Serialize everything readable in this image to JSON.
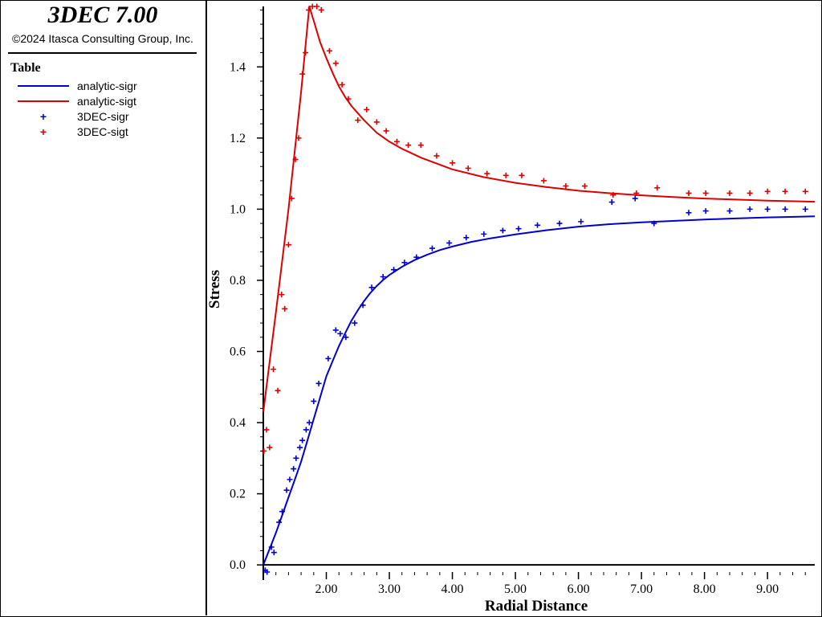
{
  "header": {
    "app_title": "3DEC 7.00",
    "copyright": "©2024 Itasca Consulting Group, Inc."
  },
  "legend": {
    "title": "Table",
    "items": [
      {
        "label": "analytic-sigr",
        "kind": "line",
        "color": "#0000cc"
      },
      {
        "label": "analytic-sigt",
        "kind": "line",
        "color": "#dd0000"
      },
      {
        "label": "3DEC-sigr",
        "kind": "marker",
        "color": "#0000cc"
      },
      {
        "label": "3DEC-sigt",
        "kind": "marker",
        "color": "#dd0000"
      }
    ]
  },
  "chart_data": {
    "type": "scatter",
    "xlabel": "Radial Distance",
    "ylabel": "Stress",
    "xlim": [
      1.0,
      9.75
    ],
    "ylim": [
      -0.02,
      1.57
    ],
    "xticks": [
      {
        "value": 2,
        "label": "2.00"
      },
      {
        "value": 3,
        "label": "3.00"
      },
      {
        "value": 4,
        "label": "4.00"
      },
      {
        "value": 5,
        "label": "5.00"
      },
      {
        "value": 6,
        "label": "6.00"
      },
      {
        "value": 7,
        "label": "7.00"
      },
      {
        "value": 8,
        "label": "8.00"
      },
      {
        "value": 9,
        "label": "9.00"
      }
    ],
    "yticks": [
      {
        "value": 0.0,
        "label": "0.0"
      },
      {
        "value": 0.2,
        "label": "0.2"
      },
      {
        "value": 0.4,
        "label": "0.4"
      },
      {
        "value": 0.6,
        "label": "0.6"
      },
      {
        "value": 0.8,
        "label": "0.8"
      },
      {
        "value": 1.0,
        "label": "1.0"
      },
      {
        "value": 1.2,
        "label": "1.2"
      },
      {
        "value": 1.4,
        "label": "1.4"
      }
    ],
    "grid": false,
    "series": [
      {
        "name": "analytic-sigr",
        "kind": "line",
        "color": "#0000cc",
        "x": [
          1.0,
          1.1,
          1.2,
          1.3,
          1.4,
          1.5,
          1.6,
          1.7,
          1.8,
          1.9,
          2.0,
          2.1,
          2.2,
          2.3,
          2.4,
          2.5,
          2.6,
          2.7,
          2.8,
          2.9,
          3.0,
          3.2,
          3.4,
          3.6,
          3.8,
          4.0,
          4.3,
          4.6,
          5.0,
          5.5,
          6.0,
          6.5,
          7.0,
          7.5,
          8.0,
          8.5,
          9.0,
          9.5,
          9.75
        ],
        "y": [
          0.0,
          0.045,
          0.09,
          0.14,
          0.19,
          0.24,
          0.29,
          0.35,
          0.41,
          0.47,
          0.53,
          0.573,
          0.615,
          0.652,
          0.687,
          0.716,
          0.742,
          0.765,
          0.784,
          0.801,
          0.815,
          0.838,
          0.857,
          0.872,
          0.885,
          0.895,
          0.908,
          0.918,
          0.929,
          0.941,
          0.951,
          0.958,
          0.963,
          0.967,
          0.971,
          0.974,
          0.977,
          0.979,
          0.98
        ]
      },
      {
        "name": "analytic-sigt",
        "kind": "line",
        "color": "#dd0000",
        "x": [
          1.0,
          1.2,
          1.4,
          1.6,
          1.73,
          1.8,
          1.9,
          2.0,
          2.1,
          2.2,
          2.3,
          2.4,
          2.6,
          2.8,
          3.0,
          3.2,
          3.5,
          4.0,
          4.5,
          5.0,
          5.5,
          6.0,
          6.5,
          7.0,
          7.5,
          8.0,
          8.5,
          9.0,
          9.5,
          9.75
        ],
        "y": [
          0.43,
          0.71,
          1.0,
          1.33,
          1.57,
          1.53,
          1.47,
          1.425,
          1.383,
          1.345,
          1.315,
          1.29,
          1.25,
          1.215,
          1.19,
          1.17,
          1.145,
          1.112,
          1.09,
          1.074,
          1.062,
          1.052,
          1.045,
          1.039,
          1.034,
          1.03,
          1.027,
          1.024,
          1.022,
          1.021
        ]
      },
      {
        "name": "3DEC-sigr",
        "kind": "scatter",
        "color": "#0000cc",
        "x": [
          1.03,
          1.06,
          1.13,
          1.17,
          1.25,
          1.3,
          1.37,
          1.42,
          1.48,
          1.52,
          1.58,
          1.62,
          1.68,
          1.73,
          1.8,
          1.88,
          2.03,
          2.15,
          2.22,
          2.31,
          2.45,
          2.58,
          2.72,
          2.9,
          3.07,
          3.24,
          3.43,
          3.68,
          3.95,
          4.22,
          4.5,
          4.8,
          5.05,
          5.35,
          5.7,
          6.04,
          6.53,
          6.9,
          7.2,
          7.75,
          8.02,
          8.4,
          8.72,
          9.0,
          9.28,
          9.6
        ],
        "y": [
          -0.015,
          -0.02,
          0.05,
          0.035,
          0.12,
          0.15,
          0.21,
          0.24,
          0.27,
          0.3,
          0.33,
          0.35,
          0.38,
          0.4,
          0.46,
          0.51,
          0.58,
          0.66,
          0.65,
          0.64,
          0.68,
          0.73,
          0.78,
          0.81,
          0.83,
          0.85,
          0.865,
          0.89,
          0.905,
          0.92,
          0.93,
          0.94,
          0.945,
          0.955,
          0.96,
          0.965,
          1.02,
          1.03,
          0.96,
          0.99,
          0.995,
          0.995,
          1.0,
          1.0,
          1.0,
          1.0
        ]
      },
      {
        "name": "3DEC-sigt",
        "kind": "scatter",
        "color": "#dd0000",
        "x": [
          1.01,
          1.05,
          1.1,
          1.16,
          1.23,
          1.29,
          1.34,
          1.4,
          1.45,
          1.51,
          1.56,
          1.62,
          1.67,
          1.72,
          1.78,
          1.85,
          1.92,
          2.05,
          2.15,
          2.25,
          2.35,
          2.5,
          2.64,
          2.8,
          2.95,
          3.12,
          3.3,
          3.5,
          3.75,
          4.0,
          4.25,
          4.55,
          4.85,
          5.1,
          5.45,
          5.8,
          6.1,
          6.55,
          6.92,
          7.25,
          7.75,
          8.02,
          8.4,
          8.72,
          9.0,
          9.28,
          9.6
        ],
        "y": [
          0.32,
          0.38,
          0.33,
          0.55,
          0.49,
          0.76,
          0.72,
          0.9,
          1.03,
          1.14,
          1.2,
          1.38,
          1.44,
          1.56,
          1.57,
          1.57,
          1.56,
          1.445,
          1.41,
          1.35,
          1.31,
          1.25,
          1.28,
          1.245,
          1.22,
          1.19,
          1.18,
          1.18,
          1.15,
          1.13,
          1.115,
          1.1,
          1.095,
          1.095,
          1.08,
          1.065,
          1.065,
          1.04,
          1.045,
          1.06,
          1.045,
          1.045,
          1.045,
          1.045,
          1.05,
          1.05,
          1.05
        ]
      }
    ]
  }
}
